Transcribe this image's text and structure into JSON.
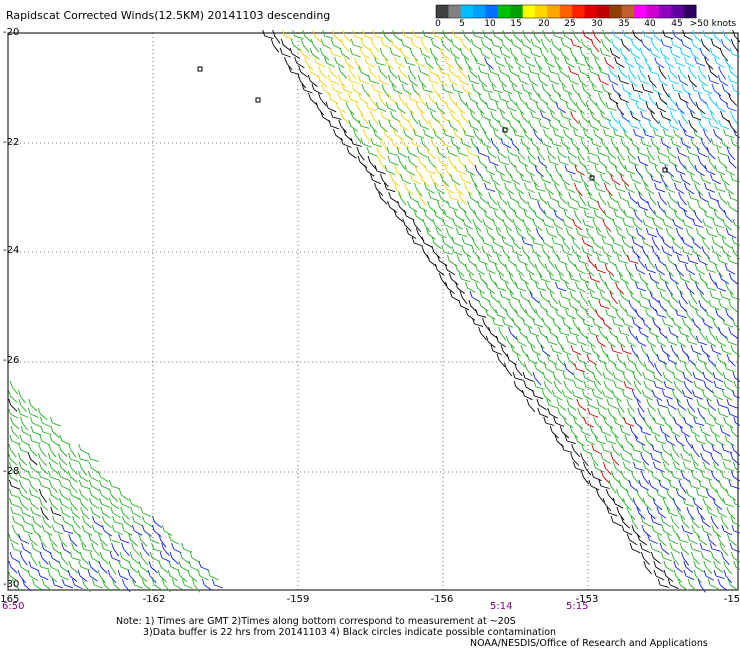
{
  "title": "Rapidscat Corrected Winds(12.5KM) 20141103 descending",
  "legend": {
    "labels": [
      "0",
      "5",
      "10",
      "15",
      "20",
      "25",
      "30",
      "35",
      "40",
      "45",
      ">50 knots"
    ],
    "colors": [
      "#404040",
      "#808080",
      "#00bfff",
      "#00a0ff",
      "#0070ff",
      "#00c000",
      "#00a000",
      "#ffff00",
      "#ffd700",
      "#ffa500",
      "#ff6000",
      "#ff2000",
      "#e00000",
      "#c00000",
      "#904000",
      "#c06030",
      "#ff00ff",
      "#d000d0",
      "#9000c0",
      "#6000a0",
      "#300060"
    ]
  },
  "axes": {
    "lon_labels": [
      "-165",
      "-162",
      "-159",
      "-156",
      "-153",
      "-15"
    ],
    "lat_labels": [
      "-20",
      "-22",
      "-24",
      "-26",
      "-28",
      "-30"
    ]
  },
  "times": [
    "6:50",
    "5:14",
    "5:15"
  ],
  "notes": {
    "line1": "Note: 1) Times are GMT 2)Times along bottom correspond to measurement at ~20S",
    "line2": "3)Data buffer is 22 hrs from 20141103 4) Black circles indicate possible contamination"
  },
  "credit": "NOAA/NESDIS/Office of Research and Applications"
}
